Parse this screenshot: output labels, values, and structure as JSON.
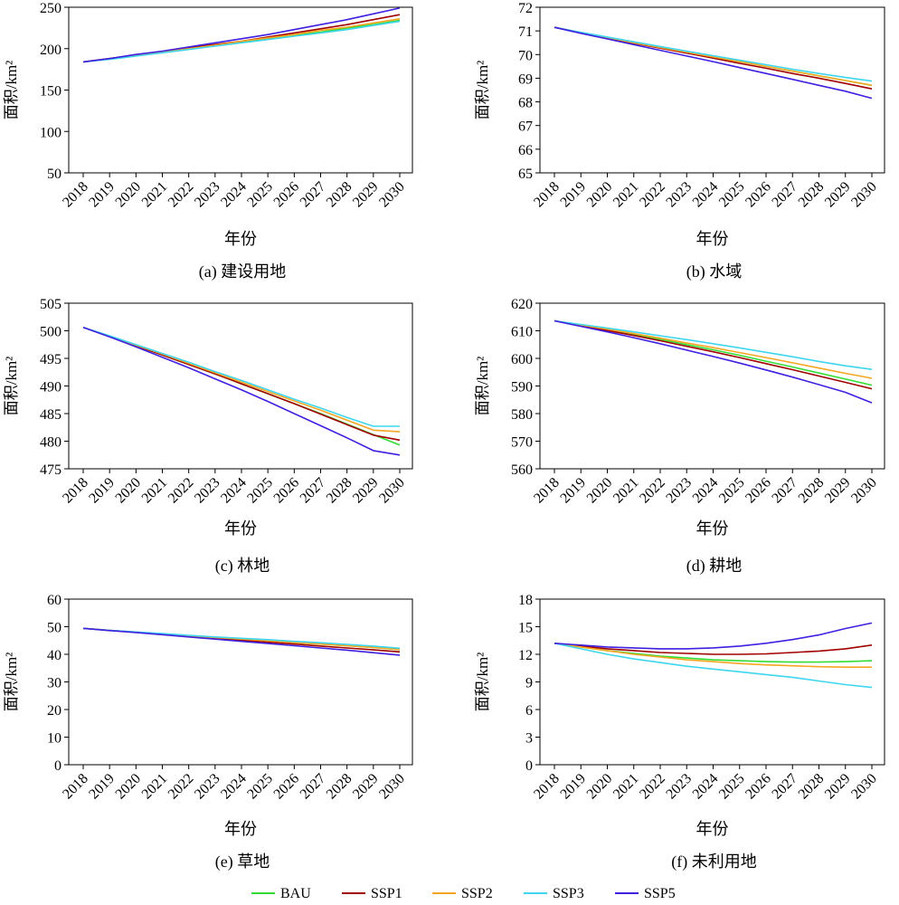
{
  "legend": {
    "items": [
      {
        "label": "BAU",
        "color": "#33dd33"
      },
      {
        "label": "SSP1",
        "color": "#a00000"
      },
      {
        "label": "SSP2",
        "color": "#f5a623"
      },
      {
        "label": "SSP3",
        "color": "#3dd6ee"
      },
      {
        "label": "SSP5",
        "color": "#3f1fe0"
      }
    ]
  },
  "chart_data": [
    {
      "type": "line",
      "caption": "(a) 建设用地",
      "xlabel": "年份",
      "ylabel": "面积/km²",
      "x": [
        "2018",
        "2019",
        "2020",
        "2021",
        "2022",
        "2023",
        "2024",
        "2025",
        "2026",
        "2027",
        "2028",
        "2029",
        "2030"
      ],
      "ylim": [
        50,
        250
      ],
      "yticks": [
        50,
        100,
        150,
        200,
        250
      ],
      "series": [
        {
          "name": "BAU",
          "values": [
            184,
            188,
            192,
            196,
            200,
            204,
            208,
            212,
            216,
            220,
            225,
            229,
            234
          ]
        },
        {
          "name": "SSP1",
          "values": [
            184,
            188,
            192,
            196,
            201,
            205,
            209,
            214,
            219,
            224,
            229,
            235,
            241
          ]
        },
        {
          "name": "SSP2",
          "values": [
            184,
            188,
            192,
            196,
            200,
            204,
            209,
            213,
            217,
            222,
            226,
            231,
            236
          ]
        },
        {
          "name": "SSP3",
          "values": [
            184,
            187,
            191,
            195,
            199,
            203,
            207,
            211,
            215,
            219,
            223,
            228,
            233
          ]
        },
        {
          "name": "SSP5",
          "values": [
            184,
            188,
            193,
            197,
            202,
            207,
            212,
            217,
            223,
            229,
            235,
            242,
            249
          ]
        }
      ]
    },
    {
      "type": "line",
      "caption": "(b) 水域",
      "xlabel": "年份",
      "ylabel": "面积/km²",
      "x": [
        "2018",
        "2019",
        "2020",
        "2021",
        "2022",
        "2023",
        "2024",
        "2025",
        "2026",
        "2027",
        "2028",
        "2029",
        "2030"
      ],
      "ylim": [
        65,
        72
      ],
      "yticks": [
        65,
        66,
        67,
        68,
        69,
        70,
        71,
        72
      ],
      "series": [
        {
          "name": "BAU",
          "values": [
            71.15,
            70.93,
            70.72,
            70.5,
            70.3,
            70.1,
            69.9,
            69.7,
            69.5,
            69.3,
            69.1,
            68.9,
            68.7
          ]
        },
        {
          "name": "SSP1",
          "values": [
            71.15,
            70.92,
            70.7,
            70.48,
            70.27,
            70.06,
            69.85,
            69.63,
            69.42,
            69.2,
            69.0,
            68.78,
            68.55
          ]
        },
        {
          "name": "SSP2",
          "values": [
            71.15,
            70.93,
            70.72,
            70.5,
            70.3,
            70.1,
            69.9,
            69.7,
            69.5,
            69.3,
            69.1,
            68.9,
            68.7
          ]
        },
        {
          "name": "SSP3",
          "values": [
            71.15,
            70.94,
            70.74,
            70.54,
            70.34,
            70.14,
            69.95,
            69.76,
            69.57,
            69.38,
            69.2,
            69.03,
            68.88
          ]
        },
        {
          "name": "SSP5",
          "values": [
            71.15,
            70.9,
            70.66,
            70.42,
            70.18,
            69.94,
            69.7,
            69.45,
            69.2,
            68.95,
            68.7,
            68.45,
            68.15
          ]
        }
      ]
    },
    {
      "type": "line",
      "caption": "(c) 林地",
      "xlabel": "年份",
      "ylabel": "面积/km²",
      "x": [
        "2018",
        "2019",
        "2020",
        "2021",
        "2022",
        "2023",
        "2024",
        "2025",
        "2026",
        "2027",
        "2028",
        "2029",
        "2030"
      ],
      "ylim": [
        475,
        505
      ],
      "yticks": [
        475,
        480,
        485,
        490,
        495,
        500,
        505
      ],
      "series": [
        {
          "name": "BAU",
          "values": [
            500.6,
            499.0,
            497.3,
            495.6,
            493.9,
            492.2,
            490.4,
            488.6,
            486.8,
            485.0,
            483.1,
            481.2,
            479.3
          ]
        },
        {
          "name": "SSP1",
          "values": [
            500.6,
            499.0,
            497.3,
            495.6,
            493.9,
            492.2,
            490.4,
            488.6,
            486.8,
            484.9,
            483.0,
            481.1,
            480.2
          ]
        },
        {
          "name": "SSP2",
          "values": [
            500.6,
            499.0,
            497.4,
            495.8,
            494.1,
            492.4,
            490.7,
            489.0,
            487.3,
            485.6,
            483.8,
            482.0,
            481.7
          ]
        },
        {
          "name": "SSP3",
          "values": [
            500.6,
            499.1,
            497.5,
            495.9,
            494.3,
            492.6,
            491.0,
            489.3,
            487.6,
            486.0,
            484.3,
            482.7,
            482.7
          ]
        },
        {
          "name": "SSP5",
          "values": [
            500.6,
            498.9,
            497.1,
            495.2,
            493.3,
            491.3,
            489.3,
            487.2,
            485.0,
            482.8,
            480.6,
            478.3,
            477.5
          ]
        }
      ]
    },
    {
      "type": "line",
      "caption": "(d) 耕地",
      "xlabel": "年份",
      "ylabel": "面积/km²",
      "x": [
        "2018",
        "2019",
        "2020",
        "2021",
        "2022",
        "2023",
        "2024",
        "2025",
        "2026",
        "2027",
        "2028",
        "2029",
        "2030"
      ],
      "ylim": [
        560,
        620
      ],
      "yticks": [
        560,
        570,
        580,
        590,
        600,
        610,
        620
      ],
      "series": [
        {
          "name": "BAU",
          "values": [
            613.6,
            612.0,
            610.4,
            608.7,
            606.9,
            605.0,
            603.1,
            601.1,
            599.0,
            596.9,
            594.7,
            592.5,
            590.3
          ]
        },
        {
          "name": "SSP1",
          "values": [
            613.6,
            611.9,
            610.1,
            608.3,
            606.4,
            604.4,
            602.4,
            600.3,
            598.1,
            595.9,
            593.6,
            591.3,
            589.0
          ]
        },
        {
          "name": "SSP2",
          "values": [
            613.6,
            612.1,
            610.6,
            609.0,
            607.3,
            605.6,
            603.9,
            602.1,
            600.3,
            598.4,
            596.5,
            594.6,
            592.8
          ]
        },
        {
          "name": "SSP3",
          "values": [
            613.6,
            612.3,
            611.0,
            609.6,
            608.2,
            606.8,
            605.3,
            603.8,
            602.2,
            600.6,
            598.9,
            597.3,
            596.0
          ]
        },
        {
          "name": "SSP5",
          "values": [
            613.6,
            611.6,
            609.6,
            607.5,
            605.3,
            603.0,
            600.7,
            598.3,
            595.8,
            593.2,
            590.5,
            587.7,
            583.9
          ]
        }
      ]
    },
    {
      "type": "line",
      "caption": "(e) 草地",
      "xlabel": "年份",
      "ylabel": "面积/km²",
      "x": [
        "2018",
        "2019",
        "2020",
        "2021",
        "2022",
        "2023",
        "2024",
        "2025",
        "2026",
        "2027",
        "2028",
        "2029",
        "2030"
      ],
      "ylim": [
        0,
        60
      ],
      "yticks": [
        0,
        10,
        20,
        30,
        40,
        50,
        60
      ],
      "series": [
        {
          "name": "BAU",
          "values": [
            49.4,
            48.7,
            48.0,
            47.3,
            46.7,
            46.1,
            45.5,
            44.9,
            44.3,
            43.7,
            43.1,
            42.5,
            41.7
          ]
        },
        {
          "name": "SSP1",
          "values": [
            49.4,
            48.7,
            48.0,
            47.2,
            46.5,
            45.8,
            45.1,
            44.4,
            43.7,
            43.0,
            42.3,
            41.6,
            40.9
          ]
        },
        {
          "name": "SSP2",
          "values": [
            49.4,
            48.7,
            48.0,
            47.3,
            46.7,
            46.1,
            45.5,
            44.9,
            44.3,
            43.7,
            43.1,
            42.5,
            41.7
          ]
        },
        {
          "name": "SSP3",
          "values": [
            49.4,
            48.7,
            48.1,
            47.5,
            46.9,
            46.3,
            45.8,
            45.3,
            44.7,
            44.2,
            43.6,
            43.0,
            42.2
          ]
        },
        {
          "name": "SSP5",
          "values": [
            49.4,
            48.6,
            47.9,
            47.1,
            46.3,
            45.5,
            44.7,
            43.9,
            43.1,
            42.3,
            41.5,
            40.6,
            39.7
          ]
        }
      ]
    },
    {
      "type": "line",
      "caption": "(f) 未利用地",
      "xlabel": "年份",
      "ylabel": "面积/km²",
      "x": [
        "2018",
        "2019",
        "2020",
        "2021",
        "2022",
        "2023",
        "2024",
        "2025",
        "2026",
        "2027",
        "2028",
        "2029",
        "2030"
      ],
      "ylim": [
        0,
        18
      ],
      "yticks": [
        0,
        3,
        6,
        9,
        12,
        15,
        18
      ],
      "series": [
        {
          "name": "BAU",
          "values": [
            13.2,
            12.8,
            12.4,
            12.1,
            11.8,
            11.6,
            11.4,
            11.3,
            11.2,
            11.15,
            11.15,
            11.2,
            11.3
          ]
        },
        {
          "name": "SSP1",
          "values": [
            13.2,
            12.9,
            12.6,
            12.4,
            12.2,
            12.1,
            12.0,
            12.0,
            12.05,
            12.2,
            12.35,
            12.6,
            13.0
          ]
        },
        {
          "name": "SSP2",
          "values": [
            13.2,
            12.8,
            12.4,
            12.0,
            11.7,
            11.4,
            11.2,
            11.0,
            10.85,
            10.75,
            10.65,
            10.6,
            10.6
          ]
        },
        {
          "name": "SSP3",
          "values": [
            13.2,
            12.6,
            12.0,
            11.5,
            11.1,
            10.7,
            10.4,
            10.1,
            9.8,
            9.5,
            9.1,
            8.7,
            8.4
          ]
        },
        {
          "name": "SSP5",
          "values": [
            13.2,
            13.0,
            12.8,
            12.7,
            12.6,
            12.6,
            12.7,
            12.9,
            13.2,
            13.6,
            14.1,
            14.8,
            15.4
          ]
        }
      ]
    }
  ]
}
